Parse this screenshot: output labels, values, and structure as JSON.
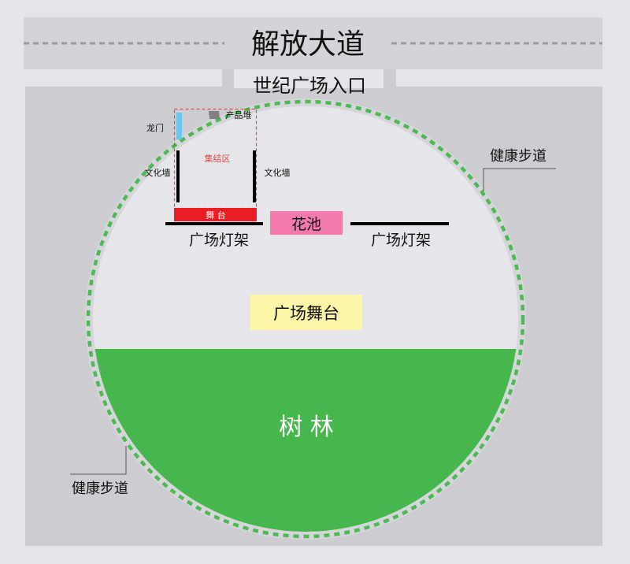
{
  "road": {
    "label": "解放大道"
  },
  "entrance": {
    "label": "世纪广场入口"
  },
  "assembly": {
    "dragon_gate": "龙门",
    "product_pile": "产品堆",
    "assembly_area": "集结区",
    "culture_wall_left": "文化墙",
    "culture_wall_right": "文化墙",
    "stage": "舞 台"
  },
  "flower_bed": "花池",
  "light_rack_left": "广场灯架",
  "light_rack_right": "广场灯架",
  "plaza_stage": "广场舞台",
  "forest": "树 林",
  "walkway_right": "健康步道",
  "walkway_left": "健康步道",
  "colors": {
    "background": "#e5e5e9",
    "road": "#d4d4d8",
    "plaza": "#cdcdd1",
    "plaza_inner": "#e6e6ea",
    "forest": "#46b74c",
    "walkway_dots": "#4cb954",
    "stage": "#ec1c24",
    "flower_bed": "#f27aad",
    "plaza_stage": "#fdf6a8",
    "dragon_gate": "#6ec6f0",
    "product_pile": "#808080"
  }
}
